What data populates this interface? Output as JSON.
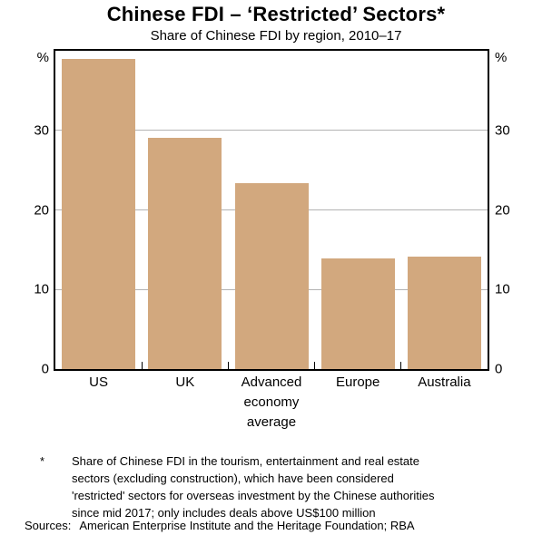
{
  "chart_data": {
    "type": "bar",
    "title": "Chinese FDI – ‘Restricted’ Sectors*",
    "subtitle": "Share of Chinese FDI by region, 2010–17",
    "categories": [
      "US",
      "UK",
      "Advanced\neconomy\naverage",
      "Europe",
      "Australia"
    ],
    "values": [
      39,
      29.1,
      23.4,
      13.9,
      14.1
    ],
    "xlabel": "",
    "ylabel_left": "%",
    "ylabel_right": "%",
    "ylim": [
      0,
      40
    ],
    "yticks": [
      0,
      10,
      20,
      30
    ],
    "gridlines": [
      10,
      20,
      30
    ],
    "grid_on": true,
    "legend": "none",
    "bar_color": "#d2a87e",
    "frame_color": "#000000",
    "gridline_color": "#b3b3b3"
  },
  "footnote": {
    "marker": "*",
    "text": "Share of Chinese FDI in the tourism, entertainment and real estate\nsectors (excluding construction), which have been considered\n'restricted' sectors for overseas investment by the Chinese authorities\nsince mid 2017; only includes deals above US$100 million",
    "sources_label": "Sources:",
    "sources_text": "American Enterprise Institute and the Heritage Foundation; RBA"
  }
}
